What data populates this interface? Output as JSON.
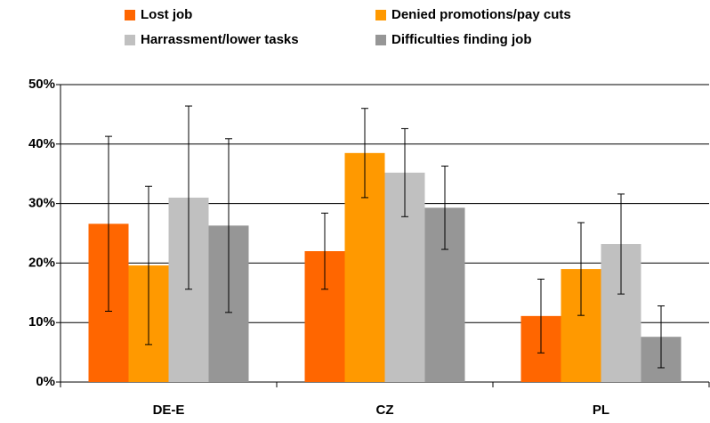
{
  "chart_data": {
    "type": "bar",
    "categories": [
      "DE-E",
      "CZ",
      "PL"
    ],
    "series": [
      {
        "name": "Lost job",
        "color": "#ff6600",
        "values": [
          26.6,
          22.0,
          11.1
        ],
        "errors": [
          14.7,
          6.4,
          6.2
        ]
      },
      {
        "name": "Denied promotions/pay cuts",
        "color": "#ff9900",
        "values": [
          19.6,
          38.5,
          19.0
        ],
        "errors": [
          13.3,
          7.5,
          7.8
        ]
      },
      {
        "name": "Harrassment/lower tasks",
        "color": "#c0c0c0",
        "values": [
          31.0,
          35.2,
          23.2
        ],
        "errors": [
          15.4,
          7.4,
          8.4
        ]
      },
      {
        "name": "Difficulties finding job",
        "color": "#969696",
        "values": [
          26.3,
          29.3,
          7.6
        ],
        "errors": [
          14.6,
          7.0,
          5.2
        ]
      }
    ],
    "ylim": [
      0,
      50
    ],
    "yticks": [
      {
        "value": 0,
        "label": "0%"
      },
      {
        "value": 10,
        "label": "10%"
      },
      {
        "value": 20,
        "label": "20%"
      },
      {
        "value": 30,
        "label": "30%"
      },
      {
        "value": 40,
        "label": "40%"
      },
      {
        "value": 50,
        "label": "50%"
      }
    ],
    "grid": true,
    "legend": "top"
  }
}
